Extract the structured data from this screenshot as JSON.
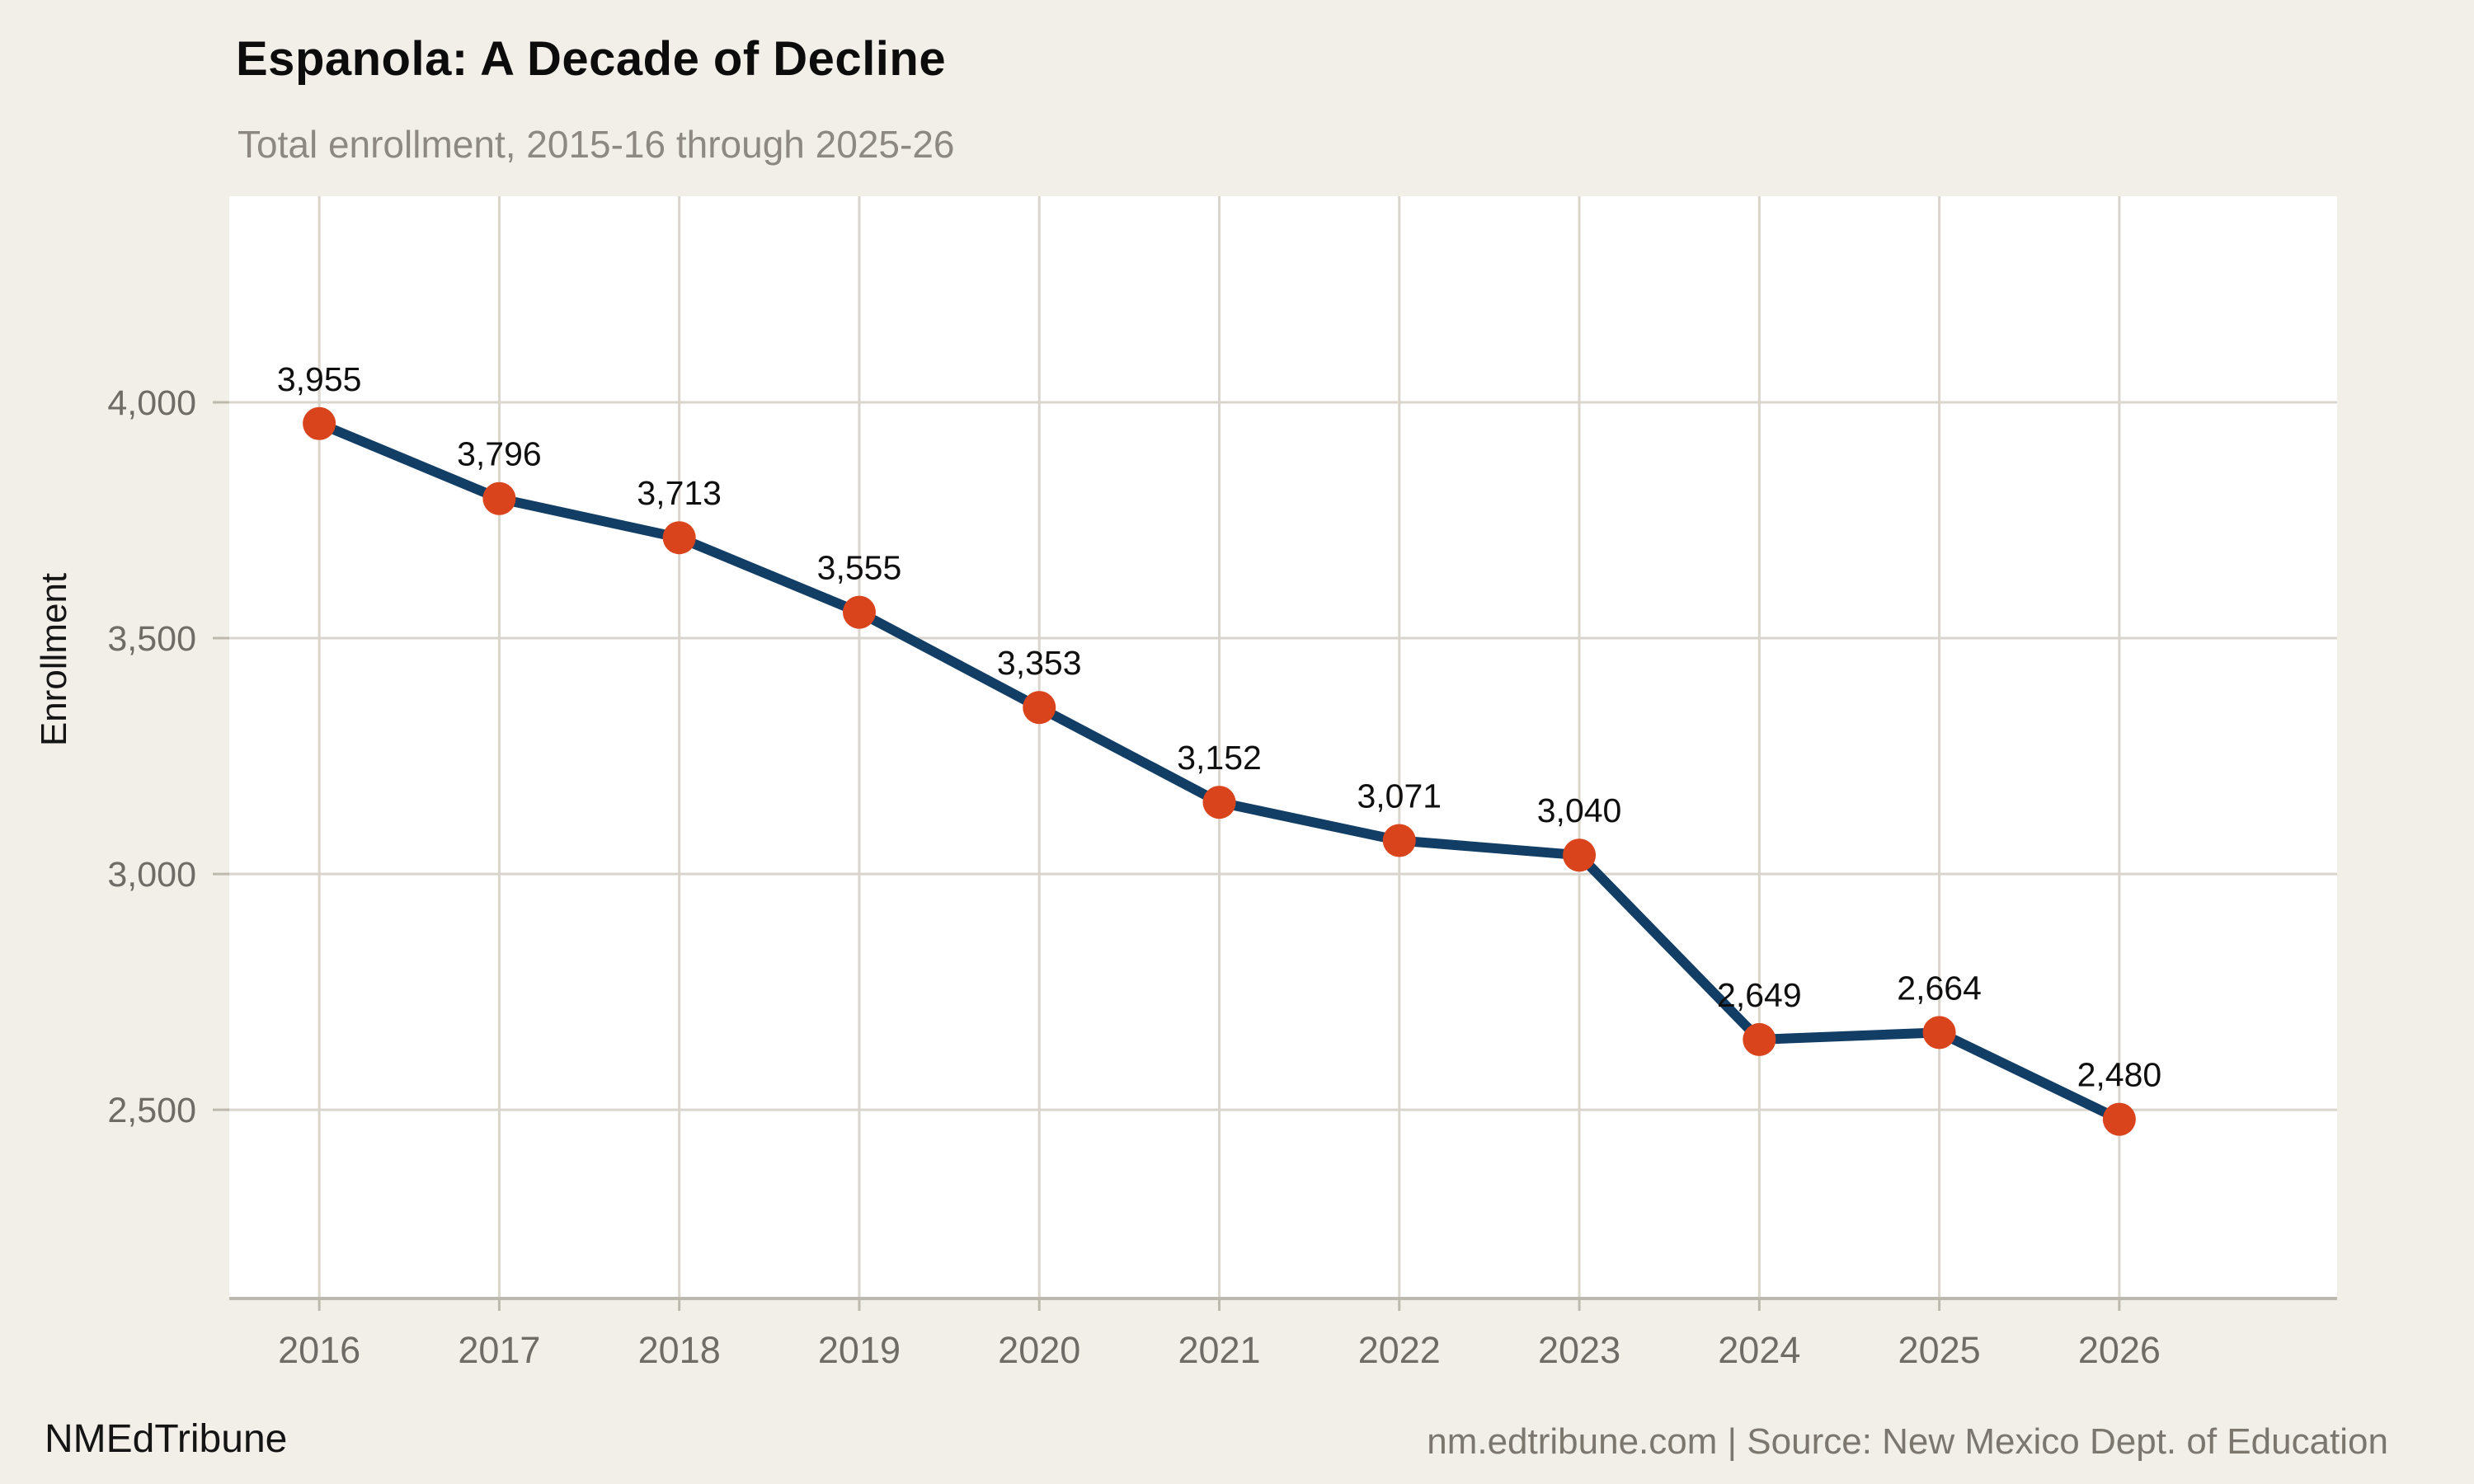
{
  "header": {
    "title": "Espanola: A Decade of Decline",
    "subtitle": "Total enrollment, 2015-16 through 2025-26"
  },
  "chart_data": {
    "type": "line",
    "title": "Espanola: A Decade of Decline",
    "subtitle": "Total enrollment, 2015-16 through 2025-26",
    "x": [
      2016,
      2017,
      2018,
      2019,
      2020,
      2021,
      2022,
      2023,
      2024,
      2025,
      2026
    ],
    "series": [
      {
        "name": "Total enrollment",
        "values": [
          3955,
          3796,
          3713,
          3555,
          3353,
          3152,
          3071,
          3040,
          2649,
          2664,
          2480
        ]
      }
    ],
    "point_labels": [
      "3,955",
      "3,796",
      "3,713",
      "3,555",
      "3,353",
      "3,152",
      "3,071",
      "3,040",
      "2,649",
      "2,664",
      "2,480"
    ],
    "xlabel": "",
    "ylabel": "Enrollment",
    "yticks": [
      2500,
      3000,
      3500,
      4000
    ],
    "ytick_labels": [
      "2,500",
      "3,000",
      "3,500",
      "4,000"
    ],
    "xtick_labels": [
      "2016",
      "2017",
      "2018",
      "2019",
      "2020",
      "2021",
      "2022",
      "2023",
      "2024",
      "2025",
      "2026"
    ],
    "ylim": [
      2100,
      4437
    ],
    "xlim": [
      2015.5,
      2027.21
    ],
    "grid": true,
    "legend": "none",
    "colors": {
      "line": "#123e66",
      "marker": "#d9441d",
      "background": "#f2efe9",
      "plot_background": "#ffffff",
      "gridline": "#d9d5cc",
      "axis": "#beb9ae",
      "tick_label": "#6f6b66",
      "value_label": "#0f0f0f",
      "axis_title": "#141414"
    }
  },
  "footer": {
    "brand": "NMEdTribune",
    "source": "nm.edtribune.com | Source: New Mexico Dept. of Education"
  }
}
